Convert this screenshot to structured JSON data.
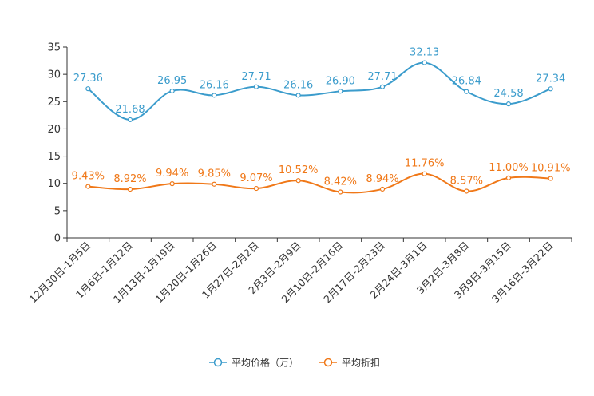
{
  "chart_data": {
    "type": "line",
    "title": "",
    "xlabel": "",
    "ylabel": "",
    "ylim": [
      0,
      35
    ],
    "yticks": [
      0,
      5,
      10,
      15,
      20,
      25,
      30,
      35
    ],
    "grid": false,
    "legend_position": "bottom-center",
    "smooth": true,
    "categories": [
      "12月30日-1月5日",
      "1月6日-1月12日",
      "1月13日-1月19日",
      "1月20日-1月26日",
      "1月27日-2月2日",
      "2月3日-2月9日",
      "2月10日-2月16日",
      "2月17日-2月23日",
      "2月24日-3月1日",
      "3月2日-3月8日",
      "3月9日-3月15日",
      "3月16日-3月22日"
    ],
    "series": [
      {
        "name": "平均价格（万）",
        "color": "#3b9ccc",
        "values": [
          27.36,
          21.68,
          26.95,
          26.16,
          27.71,
          26.16,
          26.9,
          27.71,
          32.13,
          26.84,
          24.58,
          27.34
        ],
        "labels": [
          "27.36",
          "21.68",
          "26.95",
          "26.16",
          "27.71",
          "26.16",
          "26.90",
          "27.71",
          "32.13",
          "26.84",
          "24.58",
          "27.34"
        ]
      },
      {
        "name": "平均折扣",
        "color": "#f07818",
        "values": [
          9.43,
          8.92,
          9.94,
          9.85,
          9.07,
          10.52,
          8.42,
          8.94,
          11.76,
          8.57,
          11.0,
          10.91
        ],
        "labels": [
          "9.43%",
          "8.92%",
          "9.94%",
          "9.85%",
          "9.07%",
          "10.52%",
          "8.42%",
          "8.94%",
          "11.76%",
          "8.57%",
          "11.00%",
          "10.91%"
        ]
      }
    ]
  }
}
